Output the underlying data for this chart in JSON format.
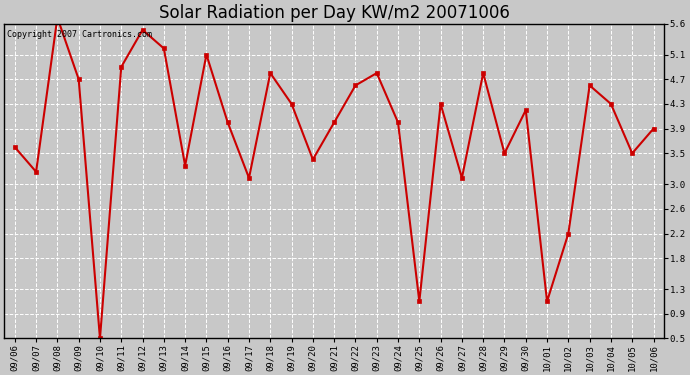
{
  "title": "Solar Radiation per Day KW/m2 20071006",
  "copyright_text": "Copyright 2007 Cartronics.com",
  "dates": [
    "09/06",
    "09/07",
    "09/08",
    "09/09",
    "09/10",
    "09/11",
    "09/12",
    "09/13",
    "09/14",
    "09/15",
    "09/16",
    "09/17",
    "09/18",
    "09/19",
    "09/20",
    "09/21",
    "09/22",
    "09/23",
    "09/24",
    "09/25",
    "09/26",
    "09/27",
    "09/28",
    "09/29",
    "09/30",
    "10/01",
    "10/02",
    "10/03",
    "10/04",
    "10/05",
    "10/06"
  ],
  "values": [
    3.6,
    3.2,
    5.7,
    4.7,
    0.5,
    4.9,
    5.5,
    5.2,
    3.3,
    5.1,
    4.0,
    3.1,
    4.8,
    4.3,
    3.4,
    4.0,
    4.6,
    4.8,
    4.0,
    1.1,
    4.3,
    3.1,
    4.8,
    3.5,
    4.2,
    1.1,
    2.2,
    4.6,
    4.3,
    3.5,
    3.9
  ],
  "line_color": "#cc0000",
  "marker": "s",
  "marker_size": 3,
  "marker_color": "#cc0000",
  "bg_color": "#c8c8c8",
  "plot_bg_color": "#c8c8c8",
  "grid_color": "#ffffff",
  "ylim": [
    0.5,
    5.6
  ],
  "yticks": [
    0.5,
    0.9,
    1.3,
    1.8,
    2.2,
    2.6,
    3.0,
    3.5,
    3.9,
    4.3,
    4.7,
    5.1,
    5.6
  ],
  "title_fontsize": 12,
  "tick_fontsize": 6.5,
  "copyright_fontsize": 6
}
